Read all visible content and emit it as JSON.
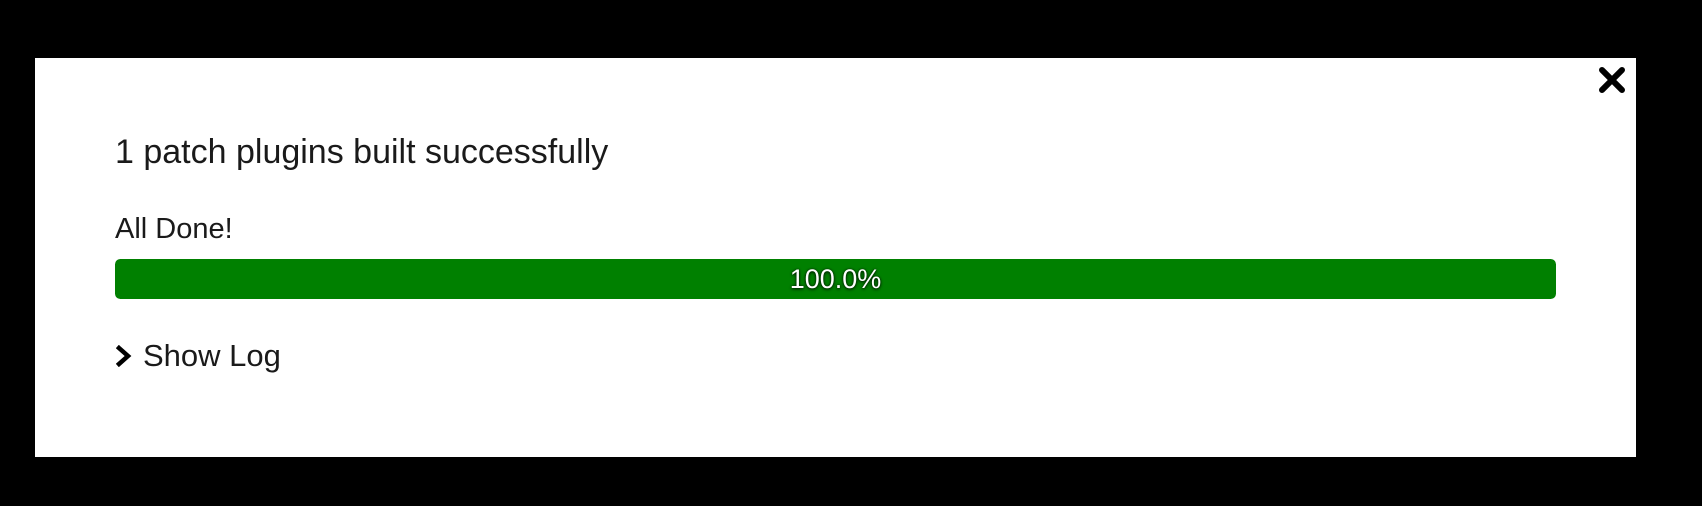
{
  "dialog": {
    "title": "1 patch plugins built successfully",
    "status": "All Done!",
    "progress": {
      "value_percent": 100.0,
      "label": "100.0%",
      "fill_color": "#008000"
    },
    "show_log_label": "Show Log",
    "icons": {
      "close": "close-icon",
      "expand": "chevron-right-icon"
    }
  }
}
